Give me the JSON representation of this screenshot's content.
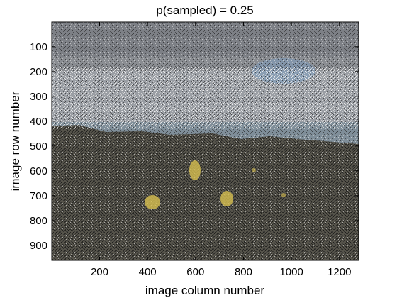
{
  "figure": {
    "title": "p(sampled) = 0.25",
    "xlabel": "image column number",
    "ylabel": "image row number",
    "x_ticks": [
      "200",
      "400",
      "600",
      "800",
      "1000",
      "1200"
    ],
    "y_ticks": [
      "100",
      "200",
      "300",
      "400",
      "500",
      "600",
      "700",
      "800",
      "900"
    ],
    "x_range": [
      1,
      1280
    ],
    "y_range": [
      1,
      960
    ],
    "x_tick_values": [
      200,
      400,
      600,
      800,
      1000,
      1200
    ],
    "y_tick_values": [
      100,
      200,
      300,
      400,
      500,
      600,
      700,
      800,
      900
    ],
    "sample_probability": 0.25,
    "colors": {
      "upper_band": "#7d8086",
      "sky_band": "#9a9ea4",
      "horizon_band": "#7f8e99",
      "ground": "#55534a",
      "blue_tint": "#7aa0c8",
      "yellow_flowers": "#d8c050",
      "axis": "#000000",
      "background": "#ffffff"
    }
  }
}
